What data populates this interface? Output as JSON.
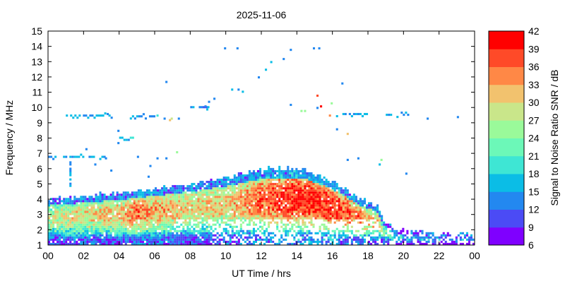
{
  "chart_data": {
    "type": "heatmap",
    "title": "2025-11-06",
    "xlabel": "UT Time / hrs",
    "ylabel": "Frequency / MHz",
    "xlim": [
      0,
      24
    ],
    "ylim": [
      1,
      15
    ],
    "x_ticks": [
      "00",
      "02",
      "04",
      "06",
      "08",
      "10",
      "12",
      "14",
      "16",
      "18",
      "20",
      "22",
      "00"
    ],
    "y_ticks": [
      "1",
      "2",
      "3",
      "4",
      "5",
      "6",
      "7",
      "8",
      "9",
      "10",
      "11",
      "12",
      "13",
      "14",
      "15"
    ],
    "cell_size": {
      "hours": 0.12,
      "mhz": 0.14
    },
    "colorbar": {
      "label": "Signal to Noise Ratio SNR / dB",
      "ticks": [
        "6",
        "9",
        "12",
        "15",
        "18",
        "21",
        "24",
        "27",
        "30",
        "33",
        "36",
        "39",
        "42"
      ],
      "levels": [
        {
          "from": 6,
          "to": 9,
          "color": "#7f00ff"
        },
        {
          "from": 9,
          "to": 12,
          "color": "#4b4bf5"
        },
        {
          "from": 12,
          "to": 15,
          "color": "#2388f0"
        },
        {
          "from": 15,
          "to": 18,
          "color": "#0bbde6"
        },
        {
          "from": 18,
          "to": 21,
          "color": "#3ee6d4"
        },
        {
          "from": 21,
          "to": 24,
          "color": "#6cf8b8"
        },
        {
          "from": 24,
          "to": 27,
          "color": "#9afa9a"
        },
        {
          "from": 27,
          "to": 30,
          "color": "#c9e68a"
        },
        {
          "from": 30,
          "to": 33,
          "color": "#f2c26e"
        },
        {
          "from": 33,
          "to": 36,
          "color": "#ff8846"
        },
        {
          "from": 36,
          "to": 39,
          "color": "#ff4a28"
        },
        {
          "from": 39,
          "to": 42,
          "color": "#ff0000"
        }
      ]
    },
    "main_layer": {
      "upper_edge_mhz": [
        [
          0,
          3.8
        ],
        [
          2,
          4.0
        ],
        [
          4,
          4.2
        ],
        [
          6,
          4.5
        ],
        [
          8,
          4.8
        ],
        [
          10,
          5.2
        ],
        [
          11.5,
          5.6
        ],
        [
          12.5,
          5.8
        ],
        [
          14.5,
          5.7
        ],
        [
          15.5,
          5.2
        ],
        [
          16.5,
          4.6
        ],
        [
          17.5,
          3.8
        ],
        [
          18.5,
          3.3
        ],
        [
          18.8,
          2.4
        ],
        [
          19.5,
          1.8
        ],
        [
          21,
          1.6
        ],
        [
          24,
          1.5
        ]
      ],
      "peak_snr_db": [
        [
          0,
          27
        ],
        [
          2,
          30
        ],
        [
          4,
          31
        ],
        [
          5,
          36
        ],
        [
          6,
          33
        ],
        [
          8,
          30
        ],
        [
          10,
          31
        ],
        [
          12,
          37
        ],
        [
          14,
          40
        ],
        [
          16,
          39
        ],
        [
          17.5,
          34
        ],
        [
          18.5,
          30
        ],
        [
          19,
          22
        ],
        [
          20,
          16
        ],
        [
          24,
          14
        ]
      ]
    },
    "sparse_bands": [
      {
        "t_start": 1.0,
        "t_end": 3.6,
        "mhz": 9.4,
        "snr": 15
      },
      {
        "t_start": 0.0,
        "t_end": 3.2,
        "mhz": 6.7,
        "snr": 15
      },
      {
        "t_start": 1.2,
        "t_end": 1.4,
        "mhz_start": 4.8,
        "mhz_end": 6.6,
        "snr": 15
      },
      {
        "t_start": 4.6,
        "t_end": 6.0,
        "mhz": 9.35,
        "snr": 15
      },
      {
        "t_start": 4.0,
        "t_end": 4.8,
        "mhz": 7.95,
        "snr": 17
      },
      {
        "t_start": 19.0,
        "t_end": 20.3,
        "mhz": 9.45,
        "snr": 15
      },
      {
        "t_start": 16.2,
        "t_end": 18.0,
        "mhz": 9.5,
        "snr": 15
      },
      {
        "t_start": 8.0,
        "t_end": 9.0,
        "mhz": 9.95,
        "snr": 13
      },
      {
        "t_start": 10.3,
        "t_end": 11.0,
        "mhz": 11.1,
        "snr": 14
      }
    ],
    "sparse_points": [
      [
        9.9,
        13.8,
        13
      ],
      [
        10.6,
        13.8,
        14
      ],
      [
        13.6,
        13.7,
        14
      ],
      [
        14.9,
        13.8,
        14
      ],
      [
        15.2,
        13.8,
        14
      ],
      [
        12.5,
        12.9,
        15
      ],
      [
        13.2,
        13.1,
        14
      ],
      [
        12.2,
        12.4,
        15
      ],
      [
        11.8,
        11.9,
        14
      ],
      [
        16.5,
        11.5,
        14
      ],
      [
        6.6,
        11.6,
        14
      ],
      [
        15.1,
        10.7,
        38
      ],
      [
        15.3,
        10.0,
        40
      ],
      [
        15.1,
        9.9,
        14
      ],
      [
        15.9,
        10.2,
        24
      ],
      [
        14.2,
        9.7,
        24
      ],
      [
        14.4,
        9.7,
        24
      ],
      [
        13.6,
        10.1,
        14
      ],
      [
        16.8,
        8.2,
        31
      ],
      [
        16.2,
        8.5,
        14
      ],
      [
        15.8,
        9.4,
        33
      ],
      [
        9.3,
        10.5,
        14
      ],
      [
        9.0,
        10.3,
        14
      ],
      [
        8.8,
        10.0,
        14
      ],
      [
        8.9,
        9.8,
        15
      ],
      [
        6.9,
        9.2,
        28
      ],
      [
        6.8,
        9.1,
        31
      ],
      [
        7.3,
        9.2,
        14
      ],
      [
        6.5,
        9.2,
        14
      ],
      [
        6.1,
        9.4,
        20
      ],
      [
        3.3,
        9.5,
        12
      ],
      [
        21.3,
        9.2,
        14
      ],
      [
        23.0,
        9.3,
        14
      ],
      [
        3.2,
        6.6,
        14
      ],
      [
        5.0,
        6.7,
        14
      ],
      [
        6.6,
        6.6,
        14
      ],
      [
        7.2,
        7.0,
        24
      ],
      [
        6.1,
        6.6,
        14
      ],
      [
        5.7,
        6.1,
        14
      ],
      [
        2.1,
        7.2,
        14
      ],
      [
        3.9,
        8.4,
        14
      ],
      [
        3.9,
        7.6,
        14
      ],
      [
        2.6,
        6.2,
        14
      ],
      [
        3.5,
        5.8,
        14
      ],
      [
        5.6,
        5.4,
        14
      ],
      [
        18.7,
        6.5,
        25
      ],
      [
        18.6,
        6.2,
        15
      ],
      [
        17.4,
        6.6,
        14
      ],
      [
        20.1,
        5.6,
        14
      ],
      [
        16.8,
        6.5,
        14
      ]
    ]
  }
}
